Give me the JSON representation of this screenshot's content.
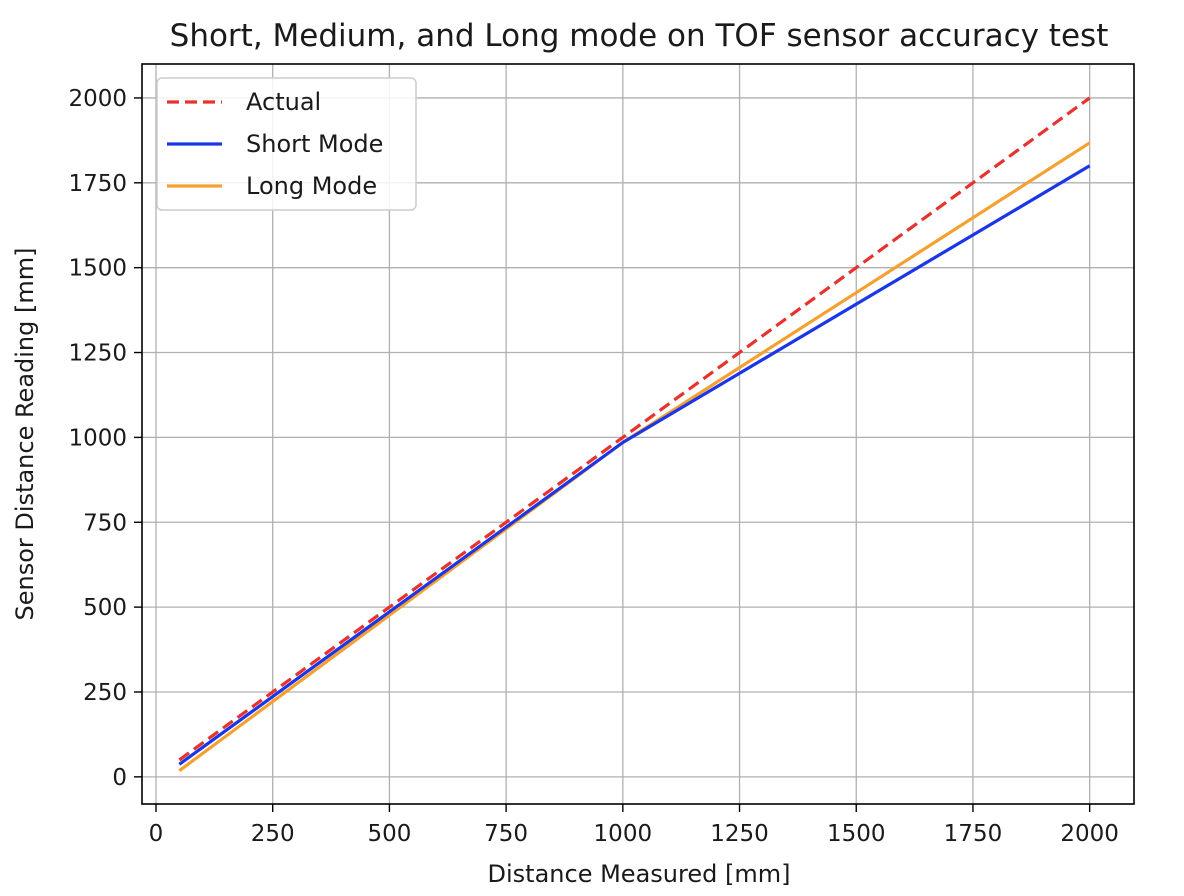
{
  "chart_data": {
    "type": "line",
    "title": "Short, Medium, and Long mode on TOF sensor accuracy test",
    "xlabel": "Distance Measured [mm]",
    "ylabel": "Sensor Distance Reading [mm]",
    "xlim": [
      -30,
      2095
    ],
    "ylim": [
      -80,
      2100
    ],
    "xticks": [
      0,
      250,
      500,
      750,
      1000,
      1250,
      1500,
      1750,
      2000
    ],
    "yticks": [
      0,
      250,
      500,
      750,
      1000,
      1250,
      1500,
      1750,
      2000
    ],
    "xtick_labels": [
      "0",
      "250",
      "500",
      "750",
      "1000",
      "1250",
      "1500",
      "1750",
      "2000"
    ],
    "ytick_labels": [
      "0",
      "250",
      "500",
      "750",
      "1000",
      "1250",
      "1500",
      "1750",
      "2000"
    ],
    "grid": true,
    "legend_position": "top-left",
    "series": [
      {
        "name": "Actual",
        "color": "#e8322d",
        "dash": "dashed",
        "points": [
          [
            50,
            50
          ],
          [
            1000,
            1000
          ],
          [
            2000,
            2000
          ]
        ]
      },
      {
        "name": "Short Mode",
        "color": "#1a36e6",
        "dash": "solid",
        "points": [
          [
            50,
            37
          ],
          [
            1000,
            985
          ],
          [
            2000,
            1800
          ]
        ]
      },
      {
        "name": "Long Mode",
        "color": "#f5a030",
        "dash": "solid",
        "points": [
          [
            50,
            18
          ],
          [
            1000,
            985
          ],
          [
            2000,
            1868
          ]
        ]
      }
    ]
  }
}
